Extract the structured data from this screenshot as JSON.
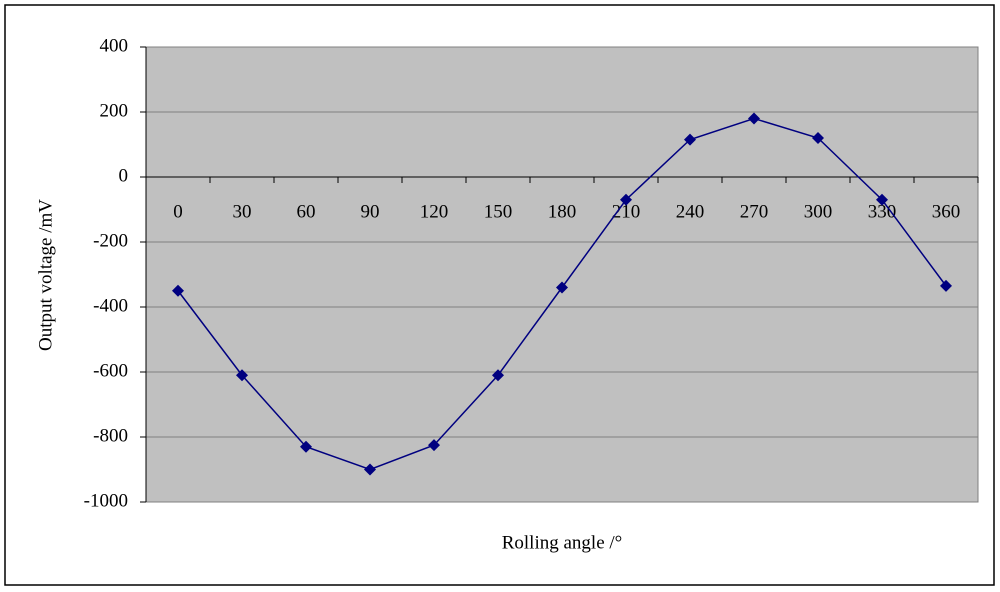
{
  "chart_data": {
    "type": "line",
    "x_label": "Rolling angle /°",
    "y_label": "Output voltage /mV",
    "categories": [
      "0",
      "30",
      "60",
      "90",
      "120",
      "150",
      "180",
      "210",
      "240",
      "270",
      "300",
      "330",
      "360"
    ],
    "series": [
      {
        "name": "Output voltage",
        "color": "#000080",
        "values": [
          -350,
          -610,
          -830,
          -900,
          -825,
          -610,
          -340,
          -70,
          115,
          180,
          120,
          -70,
          -335
        ]
      }
    ],
    "ylim": [
      -1000,
      400
    ],
    "yticks": [
      -1000,
      -800,
      -600,
      -400,
      -200,
      0,
      200,
      400
    ],
    "grid": true
  }
}
